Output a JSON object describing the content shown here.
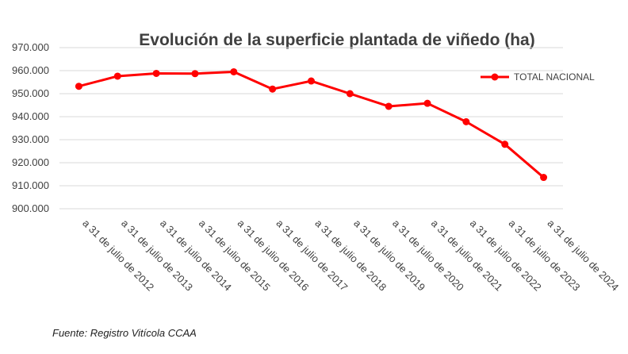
{
  "chart_data": {
    "type": "line",
    "title": "Evolución de la superficie plantada de viñedo (ha)",
    "categories": [
      "a 31 de julio de 2012",
      "a 31 de julio de 2013",
      "a 31 de julio de 2014",
      "a 31 de julio de 2015",
      "a 31 de julio de 2016",
      "a 31 de julio de 2017",
      "a 31 de julio de 2018",
      "a 31 de julio de 2019",
      "a 31 de julio de 2020",
      "a 31 de julio de 2021",
      "a 31 de julio de 2022",
      "a 31 de julio de 2023",
      "a 31 de julio de 2024"
    ],
    "series": [
      {
        "name": "TOTAL NACIONAL",
        "color": "#ff0000",
        "values": [
          953200,
          957600,
          958800,
          958700,
          959500,
          952000,
          955500,
          950000,
          944500,
          945800,
          937800,
          928000,
          913600
        ]
      }
    ],
    "ylim": [
      900000,
      970000
    ],
    "yticks": [
      900000,
      910000,
      920000,
      930000,
      940000,
      950000,
      960000,
      970000
    ],
    "ytick_labels": [
      "900.000",
      "910.000",
      "920.000",
      "930.000",
      "940.000",
      "950.000",
      "960.000",
      "970.000"
    ],
    "grid": true,
    "legend_position": "top-right",
    "xlabel": "",
    "ylabel": ""
  },
  "source": "Fuente: Registro Vitícola CCAA"
}
